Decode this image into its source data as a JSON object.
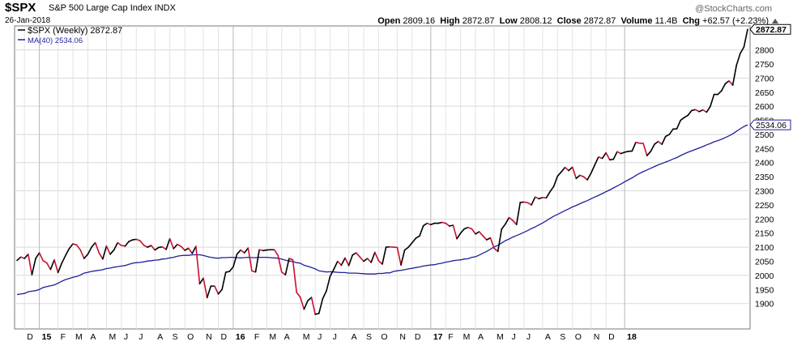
{
  "header": {
    "symbol": "$SPX",
    "company": "S&P 500 Large Cap Index INDX",
    "date": "26-Jan-2018",
    "watermark": "@StockCharts.com",
    "open_label": "Open",
    "open": "2809.16",
    "high_label": "High",
    "high": "2872.87",
    "low_label": "Low",
    "low": "2808.12",
    "close_label": "Close",
    "close": "2872.87",
    "volume_label": "Volume",
    "volume": "11.4B",
    "chg_label": "Chg",
    "chg": "+62.57 (+2.23%)"
  },
  "colors": {
    "price_up": "#000000",
    "price_down": "#c8102e",
    "ma": "#1f1f9a",
    "grid": "#d9d9d9",
    "border": "#777777"
  },
  "chart_data": {
    "type": "line",
    "legend": [
      {
        "text": "$SPX (Weekly) 2872.87",
        "color": "#000000"
      },
      {
        "text": "MA(40) 2534.06",
        "color": "#1f1f9a"
      }
    ],
    "legend_position": "top-left",
    "ylim": [
      1810,
      2885
    ],
    "y_ticks": [
      1900,
      2000,
      2100,
      2200,
      2300,
      2400,
      2500,
      2600,
      2700,
      2800
    ],
    "y_tick_labels": [
      "1900",
      "2000",
      "2050",
      "2100",
      "2150",
      "2200",
      "2250",
      "2300",
      "2350",
      "2400",
      "2450",
      "2500",
      "2550",
      "2600",
      "2650",
      "2700",
      "2750",
      "2800",
      "1950"
    ],
    "y_label_values": [
      1900,
      2000,
      2050,
      2100,
      2150,
      2200,
      2250,
      2300,
      2350,
      2400,
      2450,
      2500,
      2550,
      2600,
      2650,
      2700,
      2750,
      2800,
      1950
    ],
    "price_tag": {
      "value": 2872.87,
      "text": "2872.87"
    },
    "ma_tag": {
      "value": 2534.06,
      "text": "2534.06"
    },
    "x_labels": [
      "D",
      "15",
      "F",
      "M",
      "A",
      "M",
      "J",
      "J",
      "A",
      "S",
      "O",
      "N",
      "D",
      "16",
      "F",
      "M",
      "A",
      "M",
      "J",
      "J",
      "A",
      "S",
      "O",
      "N",
      "D",
      "17",
      "F",
      "M",
      "A",
      "M",
      "J",
      "J",
      "A",
      "S",
      "O",
      "N",
      "D",
      "18"
    ],
    "x_label_weeks": [
      2,
      6,
      11,
      15,
      19,
      24,
      28,
      32,
      37,
      41,
      45,
      50,
      54,
      58,
      63,
      67,
      71,
      76,
      80,
      84,
      89,
      93,
      97,
      102,
      106,
      111,
      115,
      119,
      123,
      128,
      132,
      136,
      141,
      145,
      149,
      154,
      158,
      163
    ],
    "x_bold_weeks": [
      6,
      58,
      111,
      163
    ],
    "series": [
      {
        "name": "$SPX (Weekly)",
        "values": [
          2053,
          2065,
          2060,
          2075,
          2002,
          2060,
          2080,
          2052,
          2044,
          2021,
          2055,
          2010,
          2043,
          2070,
          2095,
          2112,
          2108,
          2090,
          2060,
          2075,
          2100,
          2116,
          2080,
          2058,
          2104,
          2075,
          2090,
          2116,
          2106,
          2104,
          2120,
          2126,
          2128,
          2123,
          2107,
          2100,
          2106,
          2090,
          2099,
          2101,
          2092,
          2130,
          2095,
          2110,
          2103,
          2089,
          2096,
          2078,
          2103,
          1970,
          1990,
          1921,
          1962,
          1962,
          1934,
          1950,
          2011,
          2014,
          2030,
          2075,
          2090,
          2080,
          2097,
          2016,
          2012,
          2091,
          2088,
          2090,
          2091,
          2091,
          2071,
          2012,
          2002,
          2060,
          2055,
          1940,
          1922,
          1880,
          1910,
          1922,
          1862,
          1865,
          1917,
          1945,
          1997,
          2022,
          2050,
          2036,
          2062,
          2035,
          2072,
          2080,
          2065,
          2050,
          2060,
          2046,
          2082,
          2052,
          2040,
          2100,
          2101,
          2100,
          2099,
          2037,
          2090,
          2100,
          2116,
          2132,
          2140,
          2176,
          2185,
          2180,
          2185,
          2185,
          2188,
          2185,
          2175,
          2178,
          2130,
          2150,
          2165,
          2170,
          2165,
          2147,
          2155,
          2140,
          2126,
          2133,
          2096,
          2085,
          2164,
          2182,
          2205,
          2195,
          2180,
          2259,
          2260,
          2258,
          2250,
          2278,
          2272,
          2276,
          2275,
          2297,
          2316,
          2352,
          2367,
          2383,
          2372,
          2384,
          2344,
          2355,
          2350,
          2339,
          2363,
          2392,
          2420,
          2415,
          2435,
          2410,
          2412,
          2439,
          2432,
          2437,
          2440,
          2441,
          2472,
          2469,
          2468,
          2425,
          2440,
          2465,
          2475,
          2465,
          2493,
          2500,
          2519,
          2520,
          2550,
          2560,
          2568,
          2585,
          2588,
          2581,
          2587,
          2579,
          2600,
          2642,
          2642,
          2655,
          2680,
          2690,
          2675,
          2745,
          2787,
          2810,
          2873
        ]
      },
      {
        "name": "MA(40)",
        "values": [
          1932,
          1934,
          1936,
          1942,
          1944,
          1946,
          1950,
          1957,
          1960,
          1963,
          1966,
          1972,
          1979,
          1985,
          1989,
          1993,
          1996,
          2001,
          2008,
          2011,
          2014,
          2016,
          2018,
          2020,
          2024,
          2026,
          2029,
          2031,
          2033,
          2035,
          2039,
          2043,
          2045,
          2046,
          2048,
          2051,
          2052,
          2054,
          2055,
          2058,
          2059,
          2062,
          2064,
          2068,
          2070,
          2071,
          2071,
          2073,
          2073,
          2073,
          2071,
          2067,
          2064,
          2062,
          2061,
          2063,
          2063,
          2064,
          2064,
          2063,
          2062,
          2063,
          2064,
          2063,
          2063,
          2064,
          2064,
          2064,
          2063,
          2062,
          2061,
          2058,
          2054,
          2051,
          2049,
          2045,
          2043,
          2036,
          2032,
          2028,
          2023,
          2016,
          2014,
          2012,
          2013,
          2012,
          2011,
          2010,
          2010,
          2008,
          2008,
          2008,
          2007,
          2006,
          2005,
          2005,
          2005,
          2007,
          2007,
          2009,
          2009,
          2014,
          2016,
          2018,
          2020,
          2023,
          2025,
          2028,
          2030,
          2033,
          2035,
          2037,
          2038,
          2041,
          2043,
          2047,
          2049,
          2052,
          2054,
          2055,
          2058,
          2059,
          2064,
          2066,
          2072,
          2079,
          2085,
          2093,
          2101,
          2107,
          2115,
          2123,
          2129,
          2136,
          2141,
          2147,
          2153,
          2159,
          2166,
          2172,
          2179,
          2186,
          2194,
          2202,
          2210,
          2216,
          2223,
          2230,
          2236,
          2243,
          2248,
          2254,
          2260,
          2265,
          2272,
          2278,
          2284,
          2290,
          2297,
          2303,
          2310,
          2317,
          2324,
          2332,
          2339,
          2346,
          2354,
          2362,
          2368,
          2374,
          2380,
          2386,
          2392,
          2397,
          2402,
          2407,
          2413,
          2418,
          2425,
          2431,
          2437,
          2442,
          2447,
          2452,
          2457,
          2463,
          2468,
          2474,
          2478,
          2483,
          2489,
          2495,
          2502,
          2511,
          2520,
          2528,
          2534.06
        ]
      }
    ]
  }
}
